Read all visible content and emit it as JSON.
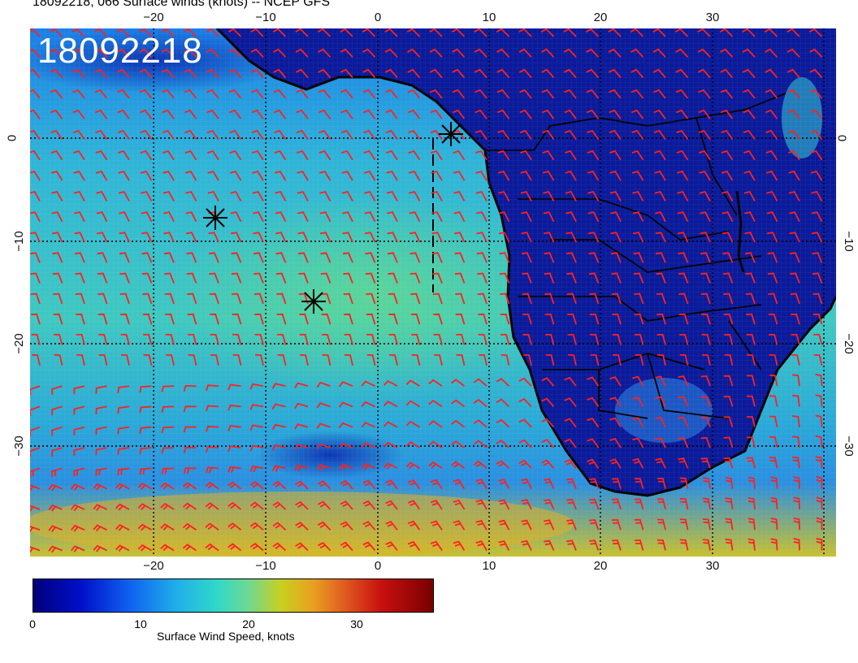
{
  "header": {
    "title": "18092218, 066 Surface winds (knots) -- NCEP GFS",
    "datestamp": "18092218"
  },
  "map": {
    "x_ticks": [
      "−20",
      "−10",
      "0",
      "10",
      "20",
      "30"
    ],
    "y_ticks": [
      "0",
      "−10",
      "−20",
      "−30"
    ],
    "barb_color": "#ff2020",
    "coastline_color": "#000000",
    "markers": [
      "star-marker",
      "star-marker",
      "star-marker"
    ]
  },
  "colorbar": {
    "ticks": [
      "0",
      "10",
      "20",
      "30"
    ],
    "label": "Surface Wind Speed, knots",
    "range": [
      0,
      37
    ]
  }
}
